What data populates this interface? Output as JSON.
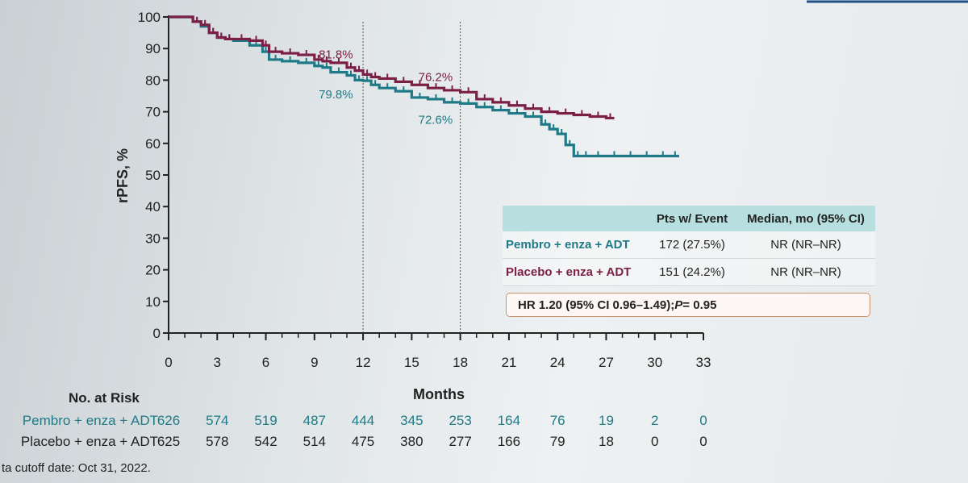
{
  "chart_data": {
    "type": "line",
    "ylabel": "rPFS, %",
    "xlabel": "Months",
    "xlim": [
      0,
      33
    ],
    "ylim": [
      0,
      100
    ],
    "xticks": [
      0,
      3,
      6,
      9,
      12,
      15,
      18,
      21,
      24,
      27,
      30,
      33
    ],
    "yticks": [
      0,
      10,
      20,
      30,
      40,
      50,
      60,
      70,
      80,
      90,
      100
    ],
    "reference_lines_x": [
      12,
      18
    ],
    "grid": false,
    "series": [
      {
        "name": "Pembro + enza + ADT",
        "color": "#1f7a87",
        "x": [
          0,
          1.5,
          2,
          2.5,
          3,
          3.5,
          4,
          5,
          5.8,
          6.2,
          7,
          8,
          9,
          9.5,
          10,
          11,
          11.5,
          12,
          12.5,
          13,
          14,
          15,
          16,
          17,
          18,
          19,
          20,
          21,
          22,
          23,
          23.5,
          24,
          24.5,
          25,
          25.5,
          26,
          27,
          28,
          29,
          30,
          31,
          31.5
        ],
        "y": [
          100,
          98.5,
          97,
          95,
          93.5,
          93,
          92.5,
          91,
          89,
          86.5,
          86,
          85.5,
          84.5,
          84,
          82.5,
          81.5,
          80,
          79.8,
          78.5,
          77.5,
          76.5,
          74.5,
          74,
          73,
          72.6,
          71.5,
          70.5,
          69.5,
          68.5,
          66,
          64.5,
          63,
          59.5,
          56,
          56,
          56,
          56,
          56,
          56,
          56,
          56,
          56
        ]
      },
      {
        "name": "Placebo + enza + ADT",
        "color": "#7b1f45",
        "x": [
          0,
          1.5,
          2,
          2.5,
          3,
          3.5,
          4,
          5,
          5.8,
          6.2,
          7,
          8,
          9,
          9.5,
          10,
          11,
          11.5,
          12,
          12.5,
          13,
          14,
          15,
          16,
          17,
          18,
          19,
          20,
          21,
          22,
          23,
          24,
          25,
          26,
          27,
          27.5
        ],
        "y": [
          100,
          98.5,
          97.5,
          95,
          93.5,
          93,
          93,
          92.5,
          91,
          89,
          88.5,
          88,
          86.5,
          86,
          85.5,
          84,
          83,
          81.8,
          81,
          80.5,
          79.5,
          78.5,
          77.5,
          76.8,
          76.2,
          74,
          73,
          72,
          71,
          70,
          69.5,
          69,
          68.5,
          68,
          68
        ]
      }
    ],
    "annotations": [
      {
        "text": "81.8%",
        "x": 12,
        "y": 81.8,
        "color": "#7b1f45"
      },
      {
        "text": "79.8%",
        "x": 12,
        "y": 79.8,
        "color": "#1f7a87"
      },
      {
        "text": "76.2%",
        "x": 18,
        "y": 76.2,
        "color": "#7b1f45"
      },
      {
        "text": "72.6%",
        "x": 18,
        "y": 72.6,
        "color": "#1f7a87"
      }
    ],
    "risk_table": {
      "title": "No. at Risk",
      "times": [
        0,
        3,
        6,
        9,
        12,
        15,
        18,
        21,
        24,
        27,
        30,
        33
      ],
      "rows": [
        {
          "label": "Pembro + enza + ADT",
          "color": "#1f7a87",
          "values": [
            "626",
            "574",
            "519",
            "487",
            "444",
            "345",
            "253",
            "164",
            "76",
            "19",
            "2",
            "0"
          ]
        },
        {
          "label": "Placebo + enza + ADT",
          "color": "#222222",
          "values": [
            "625",
            "578",
            "542",
            "514",
            "475",
            "380",
            "277",
            "166",
            "79",
            "18",
            "0",
            "0"
          ]
        }
      ]
    }
  },
  "summary_table": {
    "headers": [
      "",
      "Pts w/ Event",
      "Median, mo (95% CI)"
    ],
    "rows": [
      {
        "label": "Pembro + enza + ADT",
        "label_color": "#1f7a87",
        "events": "172 (27.5%)",
        "median": "NR (NR–NR)"
      },
      {
        "label": "Placebo + enza + ADT",
        "label_color": "#7b1f45",
        "events": "151 (24.2%)",
        "median": "NR (NR–NR)"
      }
    ],
    "hr_prefix": "HR 1.20 (95% CI 0.96–1.49); ",
    "hr_p": "P",
    "hr_suffix": " = 0.95"
  },
  "footnote": "ta cutoff date: Oct 31, 2022."
}
